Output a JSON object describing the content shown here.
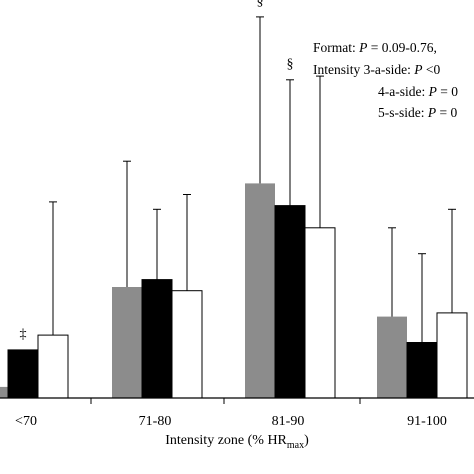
{
  "chart_data": {
    "type": "bar",
    "categories": [
      "<70",
      "71-80",
      "81-90",
      "91-100"
    ],
    "series": [
      {
        "key": "s3",
        "values": [
          3,
          30,
          58,
          22
        ],
        "errors": [
          null,
          34,
          45,
          24
        ],
        "color": "#8c8c8c"
      },
      {
        "key": "s4",
        "values": [
          13,
          32,
          52,
          15
        ],
        "errors": [
          null,
          19,
          34,
          24
        ],
        "color": "#000000"
      },
      {
        "key": "s5",
        "values": [
          17,
          29,
          46,
          23
        ],
        "errors": [
          36,
          26,
          41,
          28
        ],
        "color": "#ffffff"
      }
    ],
    "significance": [
      {
        "category": "<70",
        "series": "s4",
        "mark": "‡"
      },
      {
        "category": "81-90",
        "series": "s3",
        "mark": "§"
      },
      {
        "category": "81-90",
        "series": "s4",
        "mark": "§"
      }
    ],
    "xlabel": "Intensity zone (% HR",
    "xlabel_sub": "max",
    "xlabel_close": ")",
    "annotations": [
      "Format: P = 0.09-0.76,",
      "Intensity 3-a-side: P <0",
      "4-a-side: P = 0",
      "5-s-side: P = 0"
    ],
    "grid": false,
    "legend": "none"
  }
}
